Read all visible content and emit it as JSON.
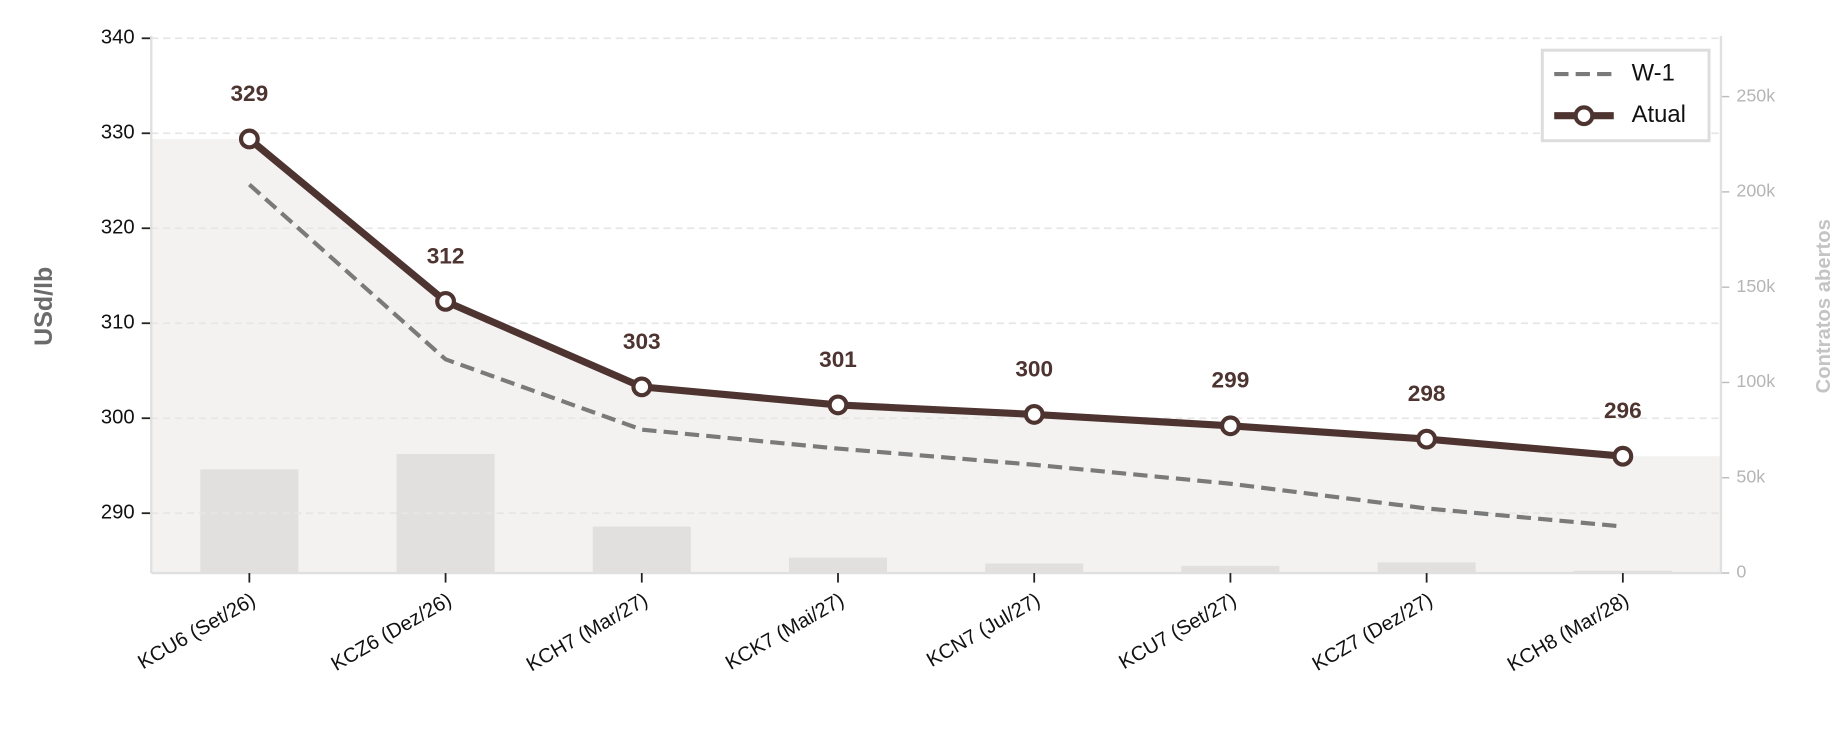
{
  "chart_data": {
    "type": "line",
    "y_label": "USd/lb",
    "y2_label": "Contratos abertos",
    "categories": [
      "KCU6 (Set/26)",
      "KCZ6 (Dez/26)",
      "KCH7 (Mar/27)",
      "KCK7 (Mai/27)",
      "KCN7 (Jul/27)",
      "KCU7 (Set/27)",
      "KCZ7 (Dez/27)",
      "KCH8 (Mar/28)"
    ],
    "series": [
      {
        "name": "W-1",
        "color": "#7a7a7a",
        "style": "dashed",
        "values": [
          324.6,
          306.2,
          298.8,
          296.8,
          295.1,
          293.1,
          290.5,
          288.6
        ]
      },
      {
        "name": "Atual",
        "color": "#4e3430",
        "style": "solid",
        "marker": true,
        "fill": "#f4f2f1",
        "values": [
          329.4,
          312.3,
          303.3,
          301.4,
          300.4,
          299.2,
          297.8,
          296.0
        ],
        "value_labels": [
          "329",
          "312",
          "303",
          "301",
          "300",
          "299",
          "298",
          "296"
        ]
      },
      {
        "name": "Contratos abertos",
        "type": "bar",
        "axis": "y2",
        "color": "#e2e0df",
        "values": [
          54400,
          62500,
          24400,
          8100,
          5000,
          3800,
          5600,
          1200
        ]
      }
    ],
    "ylim": [
      283.7,
      340
    ],
    "yticks": [
      290,
      300,
      310,
      320,
      330,
      340
    ],
    "y2lim": [
      0,
      280600
    ],
    "y2ticks": [
      0,
      {
        "value": 50000,
        "label": "50k"
      },
      {
        "value": 100000,
        "label": "100k"
      },
      {
        "value": 150000,
        "label": "150k"
      },
      {
        "value": 200000,
        "label": "200k"
      },
      {
        "value": 250000,
        "label": "250k"
      }
    ],
    "grid": true,
    "legend": "upper right"
  }
}
